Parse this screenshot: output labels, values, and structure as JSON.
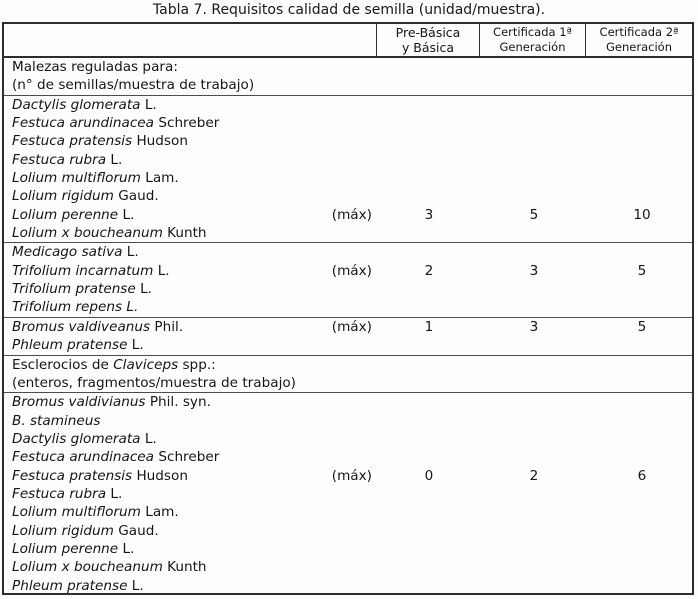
{
  "title": "Tabla 7. Requisitos calidad de semilla (unidad/muestra).",
  "colors": {
    "text": "#151515",
    "border": "#2e2e2e",
    "background": "#fdfdfc"
  },
  "max_label": "(máx)",
  "header": {
    "species_column": "",
    "columns": [
      {
        "line1": "Pre-Básica",
        "line2": "y Básica"
      },
      {
        "line1": "Certificada 1ª",
        "line2": "Generación"
      },
      {
        "line1": "Certificada 2ª",
        "line2": "Generación"
      }
    ]
  },
  "blocks": [
    {
      "type": "section",
      "lines": [
        [
          {
            "t": "Malezas reguladas para:",
            "i": 0
          }
        ],
        [
          {
            "t": "(n° de semillas/muestra de trabajo)",
            "i": 0
          }
        ]
      ]
    },
    {
      "type": "group",
      "max_row": 6,
      "values": [
        "3",
        "5",
        "10"
      ],
      "rows": [
        [
          {
            "t": "Dactylis glomerata",
            "i": 1
          },
          {
            "t": " L.",
            "i": 0
          }
        ],
        [
          {
            "t": "Festuca arundinacea",
            "i": 1
          },
          {
            "t": " Schreber",
            "i": 0
          }
        ],
        [
          {
            "t": "Festuca pratensis",
            "i": 1
          },
          {
            "t": " Hudson",
            "i": 0
          }
        ],
        [
          {
            "t": "Festuca rubra",
            "i": 1
          },
          {
            "t": " L.",
            "i": 0
          }
        ],
        [
          {
            "t": "Lolium multiflorum",
            "i": 1
          },
          {
            "t": " Lam.",
            "i": 0
          }
        ],
        [
          {
            "t": "Lolium rigidum",
            "i": 1
          },
          {
            "t": " Gaud.",
            "i": 0
          }
        ],
        [
          {
            "t": "Lolium perenne",
            "i": 1
          },
          {
            "t": " L.",
            "i": 0
          }
        ],
        [
          {
            "t": "Lolium x boucheanum",
            "i": 1
          },
          {
            "t": " Kunth",
            "i": 0
          }
        ]
      ]
    },
    {
      "type": "group",
      "max_row": 1,
      "values": [
        "2",
        "3",
        "5"
      ],
      "rows": [
        [
          {
            "t": "Medicago sativa",
            "i": 1
          },
          {
            "t": " L.",
            "i": 0
          }
        ],
        [
          {
            "t": "Trifolium incarnatum",
            "i": 1
          },
          {
            "t": " L.",
            "i": 0
          }
        ],
        [
          {
            "t": "Trifolium pratense",
            "i": 1
          },
          {
            "t": " L.",
            "i": 0
          }
        ],
        [
          {
            "t": "Trifolium repens L.",
            "i": 1
          }
        ]
      ]
    },
    {
      "type": "group",
      "max_row": 0,
      "values": [
        "1",
        "3",
        "5"
      ],
      "rows": [
        [
          {
            "t": "Bromus valdiveanus",
            "i": 1
          },
          {
            "t": " Phil.",
            "i": 0
          }
        ],
        [
          {
            "t": "Phleum pratense",
            "i": 1
          },
          {
            "t": " L.",
            "i": 0
          }
        ]
      ]
    },
    {
      "type": "section",
      "lines": [
        [
          {
            "t": "Esclerocios de ",
            "i": 0
          },
          {
            "t": "Claviceps",
            "i": 1
          },
          {
            "t": " spp.:",
            "i": 0
          }
        ],
        [
          {
            "t": "(enteros, fragmentos/muestra de trabajo)",
            "i": 0
          }
        ]
      ]
    },
    {
      "type": "group",
      "max_row": 4,
      "values": [
        "0",
        "2",
        "6"
      ],
      "rows": [
        [
          {
            "t": "Bromus valdivianus",
            "i": 1
          },
          {
            "t": " Phil. syn.",
            "i": 0
          }
        ],
        [
          {
            "t": "B. stamineus",
            "i": 1
          }
        ],
        [
          {
            "t": "Dactylis glomerata",
            "i": 1
          },
          {
            "t": " L.",
            "i": 0
          }
        ],
        [
          {
            "t": "Festuca arundinacea",
            "i": 1
          },
          {
            "t": " Schreber",
            "i": 0
          }
        ],
        [
          {
            "t": "Festuca pratensis",
            "i": 1
          },
          {
            "t": " Hudson",
            "i": 0
          }
        ],
        [
          {
            "t": "Festuca rubra",
            "i": 1
          },
          {
            "t": " L.",
            "i": 0
          }
        ],
        [
          {
            "t": "Lolium multiflorum",
            "i": 1
          },
          {
            "t": " Lam.",
            "i": 0
          }
        ],
        [
          {
            "t": "Lolium rigidum",
            "i": 1
          },
          {
            "t": " Gaud.",
            "i": 0
          }
        ],
        [
          {
            "t": "Lolium perenne",
            "i": 1
          },
          {
            "t": " L.",
            "i": 0
          }
        ],
        [
          {
            "t": "Lolium x boucheanum",
            "i": 1
          },
          {
            "t": " Kunth",
            "i": 0
          }
        ],
        [
          {
            "t": "Phleum pratense",
            "i": 1
          },
          {
            "t": " L.",
            "i": 0
          }
        ]
      ]
    }
  ]
}
